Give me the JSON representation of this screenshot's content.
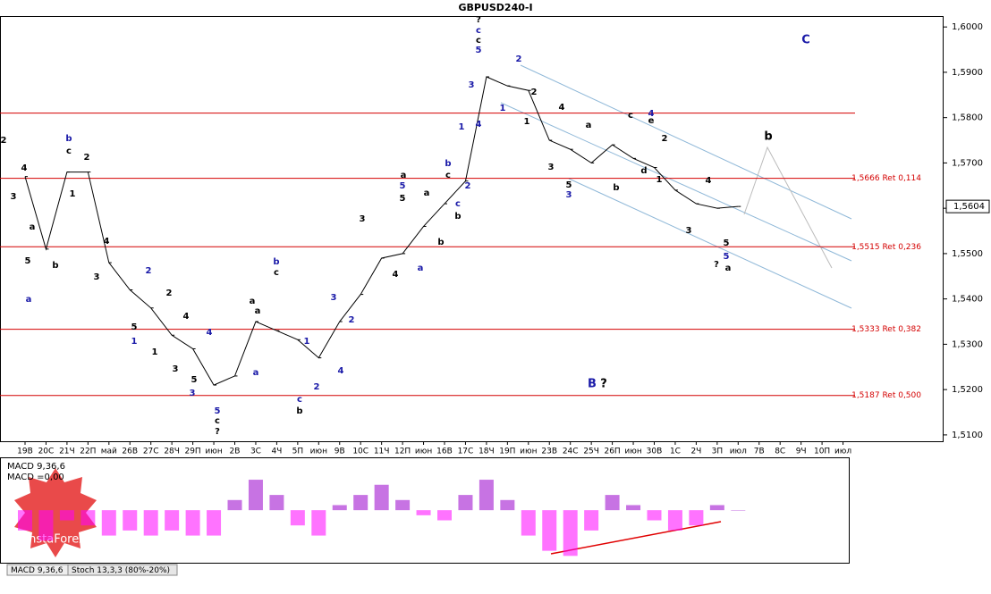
{
  "title": "GBPUSD240-I",
  "chart_data": [
    {
      "type": "line",
      "categories": [
        "19В",
        "20С",
        "21Ч",
        "22П",
        "май",
        "26В",
        "27С",
        "28Ч",
        "29П",
        "июн",
        "2В",
        "3С",
        "4Ч",
        "5П",
        "июн",
        "9В",
        "10С",
        "11Ч",
        "12П",
        "июн",
        "16В",
        "17С",
        "18Ч",
        "19П",
        "июн",
        "23В",
        "24С",
        "25Ч",
        "26П",
        "июн",
        "30В",
        "1С",
        "2Ч",
        "3П",
        "июл",
        "7В",
        "8С",
        "9Ч",
        "10П",
        "июл"
      ],
      "values": [
        1.567,
        1.551,
        1.568,
        1.568,
        1.548,
        1.542,
        1.538,
        1.532,
        1.529,
        1.521,
        1.523,
        1.535,
        1.533,
        1.531,
        1.527,
        1.535,
        1.541,
        1.549,
        1.55,
        1.556,
        1.561,
        1.566,
        1.589,
        1.587,
        1.586,
        1.575,
        1.573,
        1.57,
        1.574,
        1.571,
        1.569,
        1.564,
        1.561,
        1.56,
        1.5604,
        null,
        null,
        null,
        null,
        null
      ],
      "color": "#000000",
      "ylim": [
        1.5086,
        1.6024
      ],
      "yticks": [
        {
          "value": 1.51,
          "label": "1,5100"
        },
        {
          "value": 1.52,
          "label": "1,5200"
        },
        {
          "value": 1.53,
          "label": "1,5300"
        },
        {
          "value": 1.54,
          "label": "1,5400"
        },
        {
          "value": 1.55,
          "label": "1,5500"
        },
        {
          "value": 1.56,
          "label": "1,5600"
        },
        {
          "value": 1.57,
          "label": "1,5700"
        },
        {
          "value": 1.58,
          "label": "1,5800"
        },
        {
          "value": 1.59,
          "label": "1,5900"
        },
        {
          "value": 1.6,
          "label": "1,6000"
        }
      ],
      "levels": [
        {
          "value": 1.581
        },
        {
          "value": 1.5666,
          "label": "1,5666 Ret 0,114"
        },
        {
          "value": 1.5515,
          "label": "1,5515 Ret 0,236"
        },
        {
          "value": 1.5333,
          "label": "1,5333 Ret 0,382"
        },
        {
          "value": 1.5187,
          "label": "1,5187 Ret 0,500"
        }
      ],
      "level_color": "#d40000",
      "last_price": {
        "value": 1.5604,
        "label": "1,5604"
      },
      "annotations": [
        "2",
        "3",
        "4",
        "b",
        "c",
        "1",
        "2",
        "5",
        "a",
        "a",
        "b",
        "4",
        "3",
        "2",
        "5",
        "1",
        "2",
        "1",
        "4",
        "3",
        "4",
        "5",
        "3",
        "5",
        "c",
        "?",
        "a",
        "a",
        "a",
        "b",
        "c",
        "1",
        "2",
        "c",
        "b",
        "3",
        "4",
        "2",
        "3",
        "5",
        "a",
        "5",
        "4",
        "a",
        "a",
        "b",
        "b",
        "c",
        "c",
        "b",
        "1",
        "2",
        "3",
        "4",
        "5",
        "c",
        "c",
        "?",
        "1",
        "2",
        "2",
        "1",
        "4",
        "3",
        "5",
        "3",
        "a",
        "b",
        "c",
        "4",
        "e",
        "d",
        "2",
        "1",
        "3",
        "4",
        "5",
        "5",
        "?",
        "a",
        "b",
        "C",
        "B",
        "?"
      ]
    },
    {
      "type": "bar",
      "title": "MACD 9,36,6",
      "subtitle": "MACD =0,00",
      "values": [
        -20,
        -30,
        -10,
        -15,
        -25,
        -20,
        -25,
        -20,
        -25,
        -25,
        10,
        30,
        15,
        -15,
        -25,
        5,
        15,
        25,
        10,
        -5,
        -10,
        15,
        30,
        10,
        -25,
        -40,
        -45,
        -20,
        15,
        5,
        -10,
        -20,
        -15,
        5,
        0,
        null,
        null,
        null,
        null,
        null
      ],
      "colors": [
        "#9900cc",
        "#ff00ff"
      ],
      "ylim": [
        -50,
        45
      ]
    }
  ],
  "tabs": [
    "MACD 9,36,6",
    "Stoch 13,3,3 (80%-20%)"
  ],
  "logo": "InstaForex"
}
